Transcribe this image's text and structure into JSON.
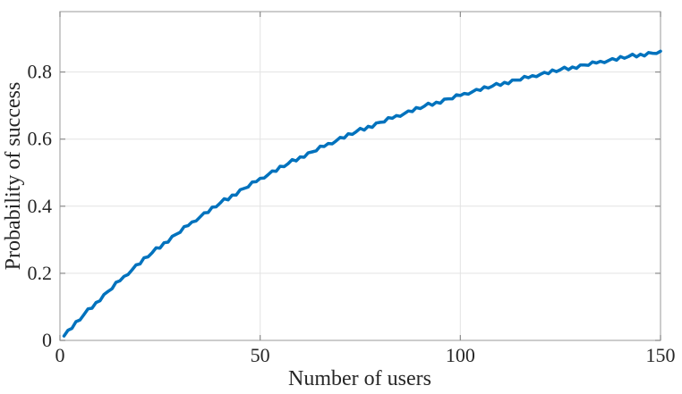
{
  "chart_data": {
    "type": "line",
    "title": "",
    "xlabel": "Number of users",
    "ylabel": "Probability of success",
    "xlim": [
      0,
      150
    ],
    "ylim": [
      0,
      0.98
    ],
    "xticks": [
      0,
      50,
      100,
      150
    ],
    "xtick_labels": [
      "0",
      "50",
      "100",
      "150"
    ],
    "yticks": [
      0,
      0.2,
      0.4,
      0.6,
      0.8
    ],
    "ytick_labels": [
      "0",
      "0.2",
      "0.4",
      "0.6",
      "0.8"
    ],
    "grid": true,
    "legend_position": "none",
    "series": [
      {
        "name": "probability-of-success",
        "color": "#0072BD",
        "x": [
          1,
          2,
          3,
          4,
          5,
          6,
          7,
          8,
          9,
          10,
          11,
          12,
          13,
          14,
          15,
          16,
          17,
          18,
          19,
          20,
          21,
          22,
          23,
          24,
          25,
          26,
          27,
          28,
          29,
          30,
          31,
          32,
          33,
          34,
          35,
          36,
          37,
          38,
          39,
          40,
          41,
          42,
          43,
          44,
          45,
          46,
          47,
          48,
          49,
          50,
          51,
          52,
          53,
          54,
          55,
          56,
          57,
          58,
          59,
          60,
          61,
          62,
          63,
          64,
          65,
          66,
          67,
          68,
          69,
          70,
          71,
          72,
          73,
          74,
          75,
          76,
          77,
          78,
          79,
          80,
          81,
          82,
          83,
          84,
          85,
          86,
          87,
          88,
          89,
          90,
          91,
          92,
          93,
          94,
          95,
          96,
          97,
          98,
          99,
          100,
          101,
          102,
          103,
          104,
          105,
          106,
          107,
          108,
          109,
          110,
          111,
          112,
          113,
          114,
          115,
          116,
          117,
          118,
          119,
          120,
          121,
          122,
          123,
          124,
          125,
          126,
          127,
          128,
          129,
          130,
          131,
          132,
          133,
          134,
          135,
          136,
          137,
          138,
          139,
          140,
          141,
          142,
          143,
          144,
          145,
          146,
          147,
          148,
          149,
          150
        ],
        "y": [
          0.013,
          0.03,
          0.036,
          0.056,
          0.061,
          0.077,
          0.094,
          0.096,
          0.113,
          0.118,
          0.137,
          0.146,
          0.154,
          0.173,
          0.178,
          0.191,
          0.196,
          0.21,
          0.225,
          0.228,
          0.246,
          0.249,
          0.261,
          0.276,
          0.275,
          0.291,
          0.293,
          0.31,
          0.316,
          0.322,
          0.339,
          0.342,
          0.353,
          0.356,
          0.368,
          0.38,
          0.381,
          0.397,
          0.398,
          0.409,
          0.422,
          0.419,
          0.433,
          0.433,
          0.449,
          0.453,
          0.457,
          0.472,
          0.473,
          0.483,
          0.484,
          0.494,
          0.505,
          0.504,
          0.519,
          0.518,
          0.527,
          0.539,
          0.535,
          0.547,
          0.546,
          0.559,
          0.562,
          0.565,
          0.579,
          0.578,
          0.587,
          0.586,
          0.595,
          0.605,
          0.603,
          0.616,
          0.614,
          0.622,
          0.632,
          0.627,
          0.638,
          0.635,
          0.648,
          0.65,
          0.651,
          0.664,
          0.662,
          0.67,
          0.668,
          0.676,
          0.684,
          0.682,
          0.694,
          0.691,
          0.698,
          0.707,
          0.701,
          0.71,
          0.707,
          0.719,
          0.72,
          0.72,
          0.732,
          0.73,
          0.736,
          0.734,
          0.741,
          0.748,
          0.745,
          0.756,
          0.752,
          0.758,
          0.766,
          0.76,
          0.769,
          0.765,
          0.776,
          0.776,
          0.776,
          0.787,
          0.783,
          0.789,
          0.786,
          0.793,
          0.799,
          0.795,
          0.806,
          0.801,
          0.807,
          0.814,
          0.807,
          0.815,
          0.811,
          0.821,
          0.821,
          0.82,
          0.83,
          0.827,
          0.832,
          0.828,
          0.834,
          0.84,
          0.835,
          0.846,
          0.841,
          0.846,
          0.853,
          0.845,
          0.853,
          0.848,
          0.858,
          0.856,
          0.855,
          0.862
        ]
      }
    ],
    "colors": {
      "line": "#0072BD",
      "grid": "#e3e3e3",
      "box": "#ababab",
      "text": "#262626",
      "background": "#ffffff"
    }
  }
}
